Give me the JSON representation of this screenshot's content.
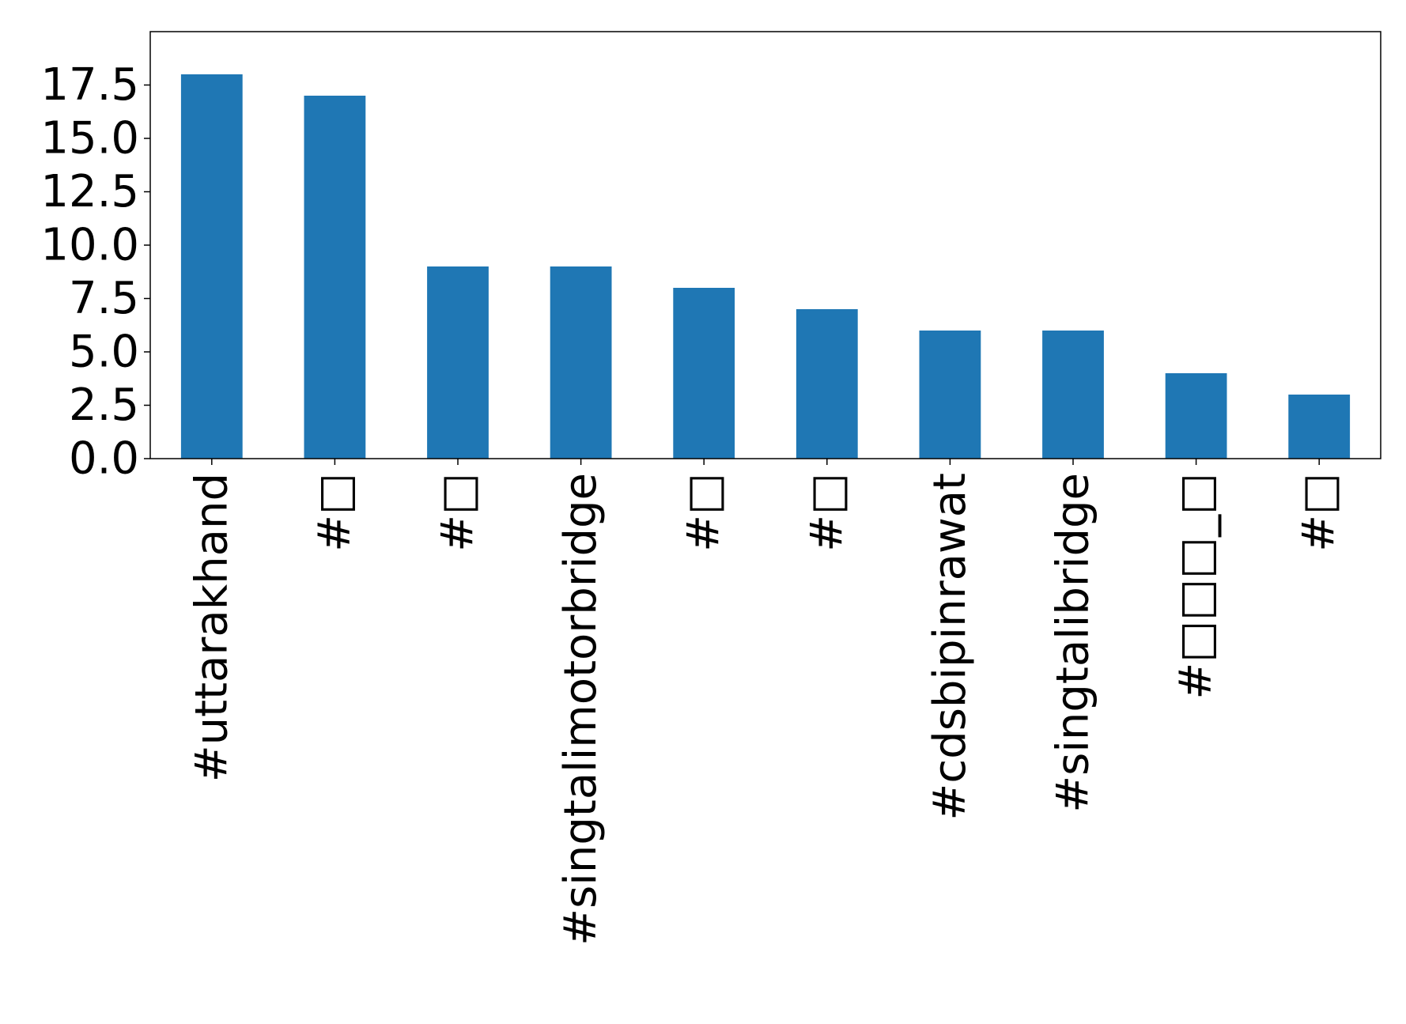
{
  "chart_data": {
    "type": "bar",
    "title": "",
    "xlabel": "",
    "ylabel": "",
    "categories": [
      "#uttarakhand",
      "#□",
      "#□",
      "#singtalimotorbridge",
      "#□",
      "#□",
      "#cdsbipinrawat",
      "#singtalibridge",
      "#□□□_□",
      "#□"
    ],
    "values": [
      18,
      17,
      9,
      9,
      8,
      7,
      6,
      6,
      4,
      3
    ],
    "ylim": [
      0,
      20
    ],
    "yticks": [
      0.0,
      2.5,
      5.0,
      7.5,
      10.0,
      12.5,
      15.0,
      17.5
    ],
    "ytick_labels": [
      "0.0",
      "2.5",
      "5.0",
      "7.5",
      "10.0",
      "12.5",
      "15.0",
      "17.5"
    ],
    "bar_color": "#1f77b4",
    "grid": false,
    "legend": "none"
  }
}
